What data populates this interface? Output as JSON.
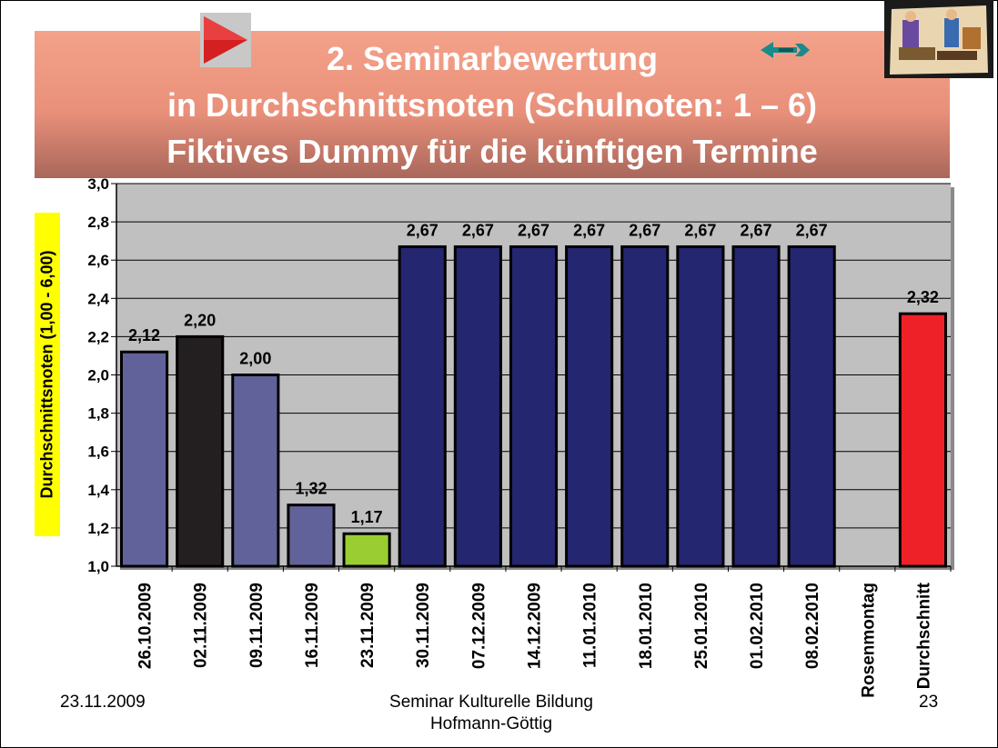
{
  "title": {
    "line1": "2. Seminarbewertung",
    "line2": "in Durchschnittsnoten (Schulnoten: 1 – 6)",
    "line3": "Fiktives Dummy für die künftigen Termine"
  },
  "footer": {
    "date": "23.11.2009",
    "center_line1": "Seminar Kulturelle Bildung",
    "center_line2": "Hofmann-Göttig",
    "page_number": "23"
  },
  "icons": {
    "play": "play-triangle-icon",
    "arrow": "back-arrow-icon",
    "clipart": "office-people-clipart-icon"
  },
  "chart_data": {
    "type": "bar",
    "ylabel": "Durchschnittsnoten (1,00 - 6,00)",
    "xlabel": "",
    "ylim": [
      1.0,
      3.0
    ],
    "yticks": [
      "1,0",
      "1,2",
      "1,4",
      "1,6",
      "1,8",
      "2,0",
      "2,2",
      "2,4",
      "2,6",
      "2,8",
      "3,0"
    ],
    "grid": true,
    "legend": "none",
    "categories": [
      "26.10.2009",
      "02.11.2009",
      "09.11.2009",
      "16.11.2009",
      "23.11.2009",
      "30.11.2009",
      "07.12.2009",
      "14.12.2009",
      "11.01.2010",
      "18.01.2010",
      "25.01.2010",
      "01.02.2010",
      "08.02.2010",
      "Rosenmontag",
      "Durchschnitt"
    ],
    "values": [
      2.12,
      2.2,
      2.0,
      1.32,
      1.17,
      2.67,
      2.67,
      2.67,
      2.67,
      2.67,
      2.67,
      2.67,
      2.67,
      null,
      2.32
    ],
    "value_labels": [
      "2,12",
      "2,20",
      "2,00",
      "1,32",
      "1,17",
      "2,67",
      "2,67",
      "2,67",
      "2,67",
      "2,67",
      "2,67",
      "2,67",
      "2,67",
      "",
      "2,32"
    ],
    "bar_colors": [
      "#62629a",
      "#231f20",
      "#62629a",
      "#62629a",
      "#9acd32",
      "#242670",
      "#242670",
      "#242670",
      "#242670",
      "#242670",
      "#242670",
      "#242670",
      "#242670",
      "#242670",
      "#ee2128"
    ],
    "plot_background": "#c0c0c0"
  }
}
